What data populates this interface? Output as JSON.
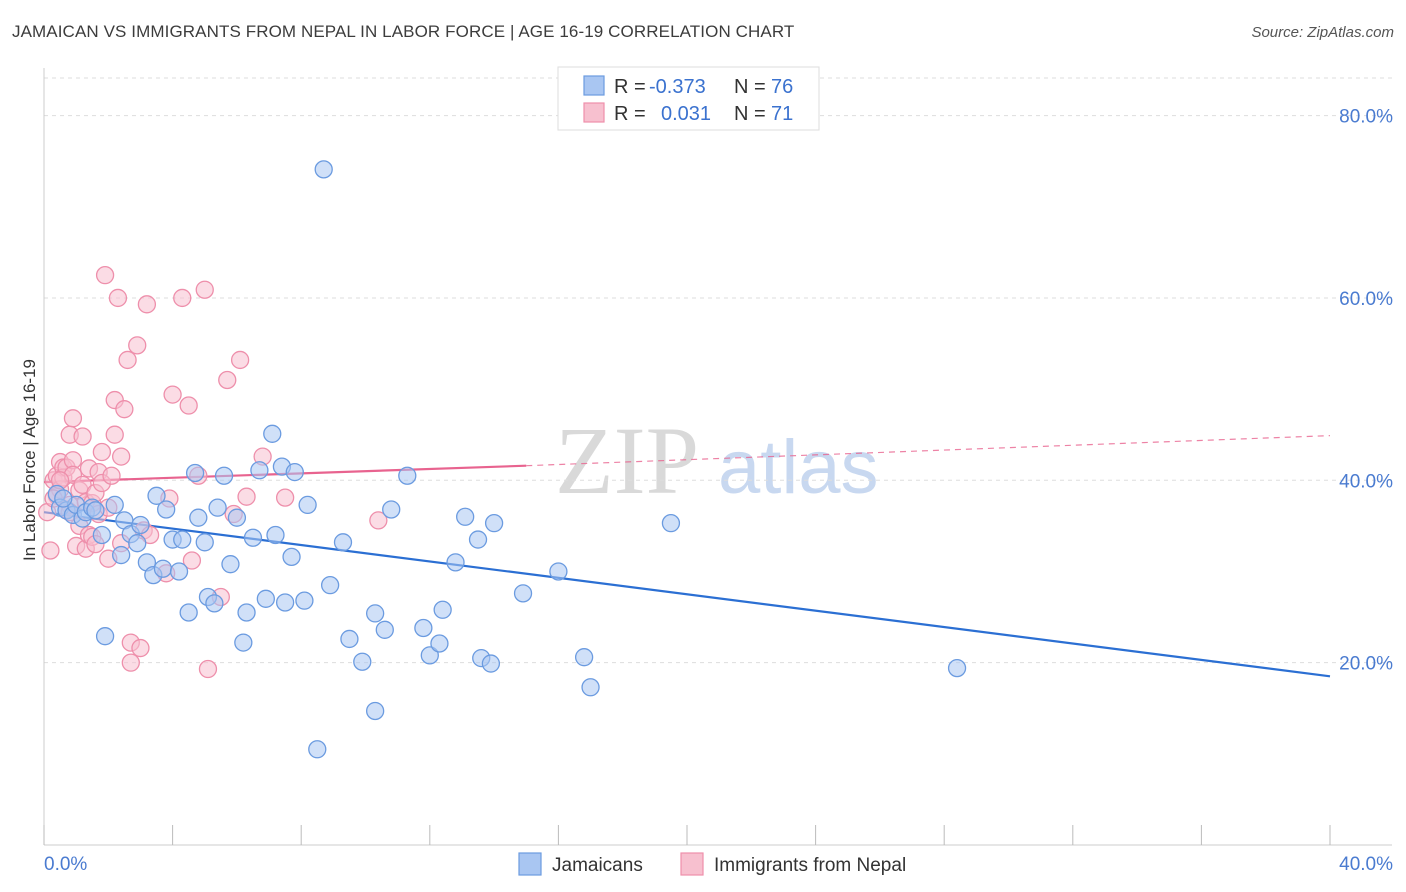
{
  "title": "JAMAICAN VS IMMIGRANTS FROM NEPAL IN LABOR FORCE | AGE 16-19 CORRELATION CHART",
  "source": "Source: ZipAtlas.com",
  "watermark": {
    "zip": "ZIP",
    "atlas": "atlas"
  },
  "colors": {
    "blue_fill": "#a9c6f2",
    "blue_stroke": "#6b9be0",
    "blue_line": "#2b6fd3",
    "pink_fill": "#f7c0cf",
    "pink_stroke": "#ee8fab",
    "pink_line": "#e8638f",
    "axis_text": "#4a7bd0",
    "grid": "#dddddd"
  },
  "legend_box": {
    "rows": [
      {
        "r_label": "R =",
        "r_value": "-0.373",
        "n_label": "N =",
        "n_value": "76"
      },
      {
        "r_label": "R =",
        "r_value": "0.031",
        "n_label": "N =",
        "n_value": "71"
      }
    ]
  },
  "bottom_legend": [
    "Jamaicans",
    "Immigrants from Nepal"
  ],
  "chart_data": {
    "type": "scatter",
    "title": "JAMAICAN VS IMMIGRANTS FROM NEPAL IN LABOR FORCE | AGE 16-19 CORRELATION CHART",
    "xlabel": "",
    "ylabel": "In Labor Force | Age 16-19",
    "xlim": [
      0,
      40
    ],
    "ylim": [
      0,
      85
    ],
    "x_tick_labels": [
      {
        "value": 0,
        "label": "0.0%"
      },
      {
        "value": 40,
        "label": "40.0%"
      }
    ],
    "y_tick_labels": [
      {
        "value": 20,
        "label": "20.0%"
      },
      {
        "value": 40,
        "label": "40.0%"
      },
      {
        "value": 60,
        "label": "60.0%"
      },
      {
        "value": 80,
        "label": "80.0%"
      }
    ],
    "grid": true,
    "legend_position": "top-center",
    "series": [
      {
        "name": "Jamaicans",
        "r": -0.373,
        "n": 76,
        "trend": {
          "x": [
            0,
            40
          ],
          "y": [
            36.5,
            18.5
          ],
          "style": "solid"
        },
        "points": [
          [
            0.4,
            38.5
          ],
          [
            0.5,
            37.0
          ],
          [
            0.7,
            36.7
          ],
          [
            0.9,
            36.2
          ],
          [
            1.0,
            37.3
          ],
          [
            1.2,
            35.8
          ],
          [
            1.3,
            36.5
          ],
          [
            1.5,
            37.0
          ],
          [
            1.6,
            36.7
          ],
          [
            1.8,
            34.0
          ],
          [
            1.9,
            22.9
          ],
          [
            2.2,
            37.3
          ],
          [
            2.4,
            31.8
          ],
          [
            2.5,
            35.6
          ],
          [
            2.7,
            34.1
          ],
          [
            2.9,
            33.1
          ],
          [
            3.0,
            35.1
          ],
          [
            3.2,
            31.0
          ],
          [
            3.4,
            29.6
          ],
          [
            3.5,
            38.3
          ],
          [
            3.7,
            30.3
          ],
          [
            3.8,
            36.8
          ],
          [
            4.0,
            33.5
          ],
          [
            4.2,
            30.0
          ],
          [
            4.3,
            33.5
          ],
          [
            4.5,
            25.5
          ],
          [
            4.7,
            40.8
          ],
          [
            4.8,
            35.9
          ],
          [
            5.0,
            33.2
          ],
          [
            5.1,
            27.2
          ],
          [
            5.3,
            26.5
          ],
          [
            5.4,
            37.0
          ],
          [
            5.6,
            40.5
          ],
          [
            5.8,
            30.8
          ],
          [
            6.0,
            35.9
          ],
          [
            6.2,
            22.2
          ],
          [
            6.3,
            25.5
          ],
          [
            6.5,
            33.7
          ],
          [
            6.7,
            41.1
          ],
          [
            6.9,
            27.0
          ],
          [
            7.1,
            45.1
          ],
          [
            7.2,
            34.0
          ],
          [
            7.4,
            41.5
          ],
          [
            7.5,
            26.6
          ],
          [
            7.7,
            31.6
          ],
          [
            7.8,
            40.9
          ],
          [
            8.1,
            26.8
          ],
          [
            8.2,
            37.3
          ],
          [
            8.5,
            10.5
          ],
          [
            8.7,
            74.1
          ],
          [
            8.9,
            28.5
          ],
          [
            9.3,
            33.2
          ],
          [
            9.5,
            22.6
          ],
          [
            9.9,
            20.1
          ],
          [
            10.3,
            25.4
          ],
          [
            10.3,
            14.7
          ],
          [
            10.6,
            23.6
          ],
          [
            10.8,
            36.8
          ],
          [
            11.3,
            40.5
          ],
          [
            11.8,
            23.8
          ],
          [
            12.0,
            20.8
          ],
          [
            12.3,
            22.1
          ],
          [
            12.4,
            25.8
          ],
          [
            12.8,
            31.0
          ],
          [
            13.1,
            36.0
          ],
          [
            13.5,
            33.5
          ],
          [
            13.6,
            20.5
          ],
          [
            13.9,
            19.9
          ],
          [
            14.0,
            35.3
          ],
          [
            14.9,
            27.6
          ],
          [
            16.0,
            30.0
          ],
          [
            16.8,
            20.6
          ],
          [
            17.0,
            17.3
          ],
          [
            19.5,
            35.3
          ],
          [
            28.4,
            19.4
          ],
          [
            0.6,
            38.0
          ]
        ]
      },
      {
        "name": "Immigrants from Nepal",
        "r": 0.031,
        "n": 71,
        "trend": {
          "x": [
            0,
            15.0,
            40
          ],
          "y": [
            39.8,
            41.6,
            44.9
          ],
          "solid_until": 15.0
        },
        "points": [
          [
            0.1,
            36.5
          ],
          [
            0.2,
            32.3
          ],
          [
            0.3,
            40.0
          ],
          [
            0.4,
            40.5
          ],
          [
            0.4,
            38.3
          ],
          [
            0.5,
            42.0
          ],
          [
            0.5,
            39.0
          ],
          [
            0.6,
            41.4
          ],
          [
            0.6,
            40.3
          ],
          [
            0.7,
            36.8
          ],
          [
            0.7,
            41.4
          ],
          [
            0.8,
            45.0
          ],
          [
            0.8,
            37.3
          ],
          [
            0.9,
            46.8
          ],
          [
            0.9,
            42.2
          ],
          [
            0.9,
            40.6
          ],
          [
            1.0,
            32.8
          ],
          [
            1.1,
            35.0
          ],
          [
            1.1,
            38.9
          ],
          [
            1.2,
            44.8
          ],
          [
            1.2,
            39.5
          ],
          [
            1.3,
            32.5
          ],
          [
            1.3,
            37.6
          ],
          [
            1.4,
            34.0
          ],
          [
            1.4,
            41.3
          ],
          [
            1.5,
            37.5
          ],
          [
            1.5,
            33.8
          ],
          [
            1.6,
            38.6
          ],
          [
            1.6,
            33.0
          ],
          [
            1.7,
            40.9
          ],
          [
            1.7,
            36.3
          ],
          [
            1.8,
            43.1
          ],
          [
            1.8,
            39.7
          ],
          [
            1.9,
            62.5
          ],
          [
            2.0,
            37.0
          ],
          [
            2.0,
            31.4
          ],
          [
            2.1,
            40.5
          ],
          [
            2.2,
            45.0
          ],
          [
            2.2,
            48.8
          ],
          [
            2.3,
            60.0
          ],
          [
            2.4,
            42.6
          ],
          [
            2.4,
            33.1
          ],
          [
            2.5,
            47.8
          ],
          [
            2.6,
            53.2
          ],
          [
            2.7,
            22.2
          ],
          [
            2.7,
            20.0
          ],
          [
            2.9,
            54.8
          ],
          [
            3.0,
            21.6
          ],
          [
            3.1,
            34.5
          ],
          [
            3.2,
            59.3
          ],
          [
            3.3,
            34.0
          ],
          [
            3.8,
            29.8
          ],
          [
            3.9,
            38.0
          ],
          [
            4.0,
            49.4
          ],
          [
            4.3,
            60.0
          ],
          [
            4.5,
            48.2
          ],
          [
            4.6,
            31.2
          ],
          [
            4.8,
            40.5
          ],
          [
            5.0,
            60.9
          ],
          [
            5.1,
            19.3
          ],
          [
            5.5,
            27.2
          ],
          [
            5.7,
            51.0
          ],
          [
            5.9,
            36.3
          ],
          [
            6.1,
            53.2
          ],
          [
            6.3,
            38.2
          ],
          [
            6.8,
            42.6
          ],
          [
            7.5,
            38.1
          ],
          [
            10.4,
            35.6
          ],
          [
            0.3,
            38.0
          ],
          [
            0.5,
            40.0
          ],
          [
            0.8,
            36.5
          ]
        ]
      }
    ]
  }
}
